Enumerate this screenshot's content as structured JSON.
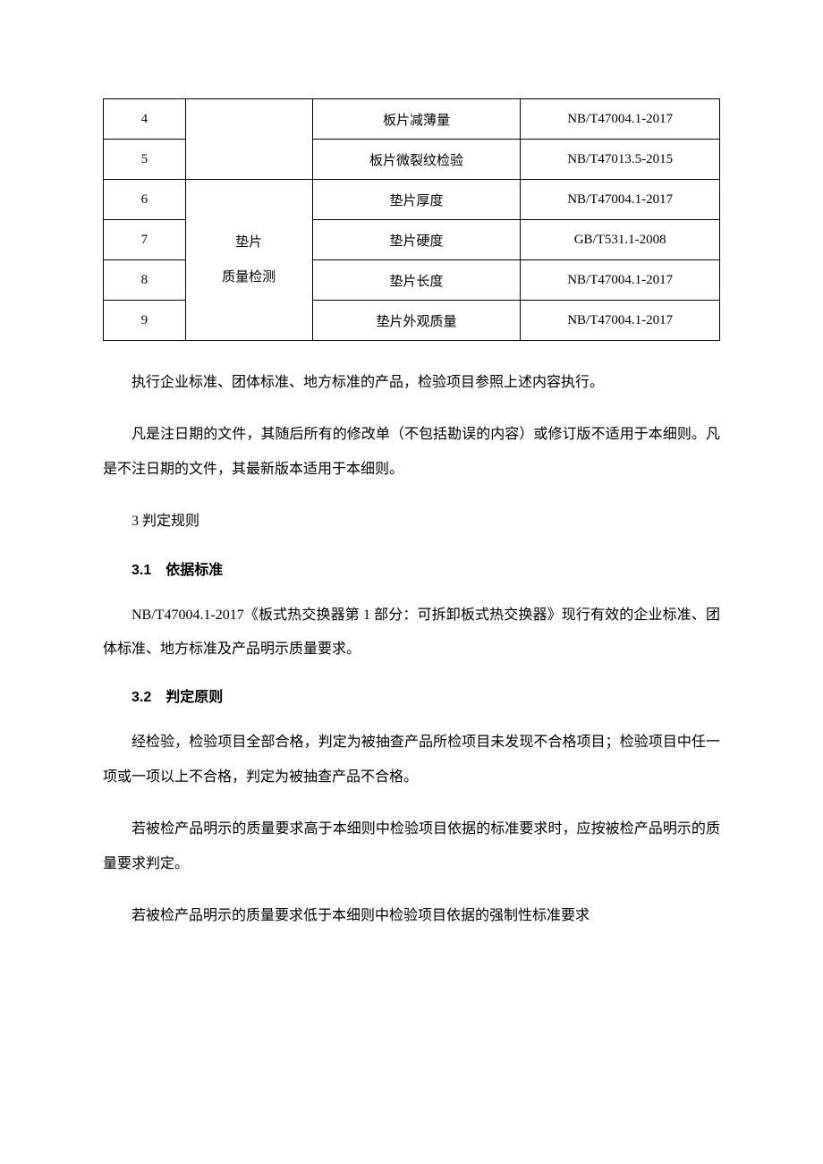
{
  "table": {
    "rows": [
      {
        "num": "4",
        "item": "板片减薄量",
        "std": "NB/T47004.1-2017"
      },
      {
        "num": "5",
        "item": "板片微裂纹检验",
        "std": "NB/T47013.5-2015"
      },
      {
        "num": "6",
        "item": "垫片厚度",
        "std": "NB/T47004.1-2017"
      },
      {
        "num": "7",
        "item": "垫片硬度",
        "std": "GB/T531.1-2008"
      },
      {
        "num": "8",
        "item": "垫片长度",
        "std": "NB/T47004.1-2017"
      },
      {
        "num": "9",
        "item": "垫片外观质量",
        "std": "NB/T47004.1-2017"
      }
    ],
    "category_line1": "垫片",
    "category_line2": "质量检测"
  },
  "paragraphs": {
    "p1": "执行企业标准、团体标准、地方标准的产品，检验项目参照上述内容执行。",
    "p2": "凡是注日期的文件，其随后所有的修改单（不包括勘误的内容）或修订版不适用于本细则。凡是不注日期的文件，其最新版本适用于本细则。",
    "sec3": "3 判定规则",
    "h31": "3.1 依据标准",
    "p3": "NB/T47004.1-2017《板式热交换器第 1 部分：可拆卸板式热交换器》现行有效的企业标准、团体标准、地方标准及产品明示质量要求。",
    "h32": "3.2 判定原则",
    "p4": "经检验，检验项目全部合格，判定为被抽查产品所检项目未发现不合格项目；检验项目中任一项或一项以上不合格，判定为被抽查产品不合格。",
    "p5": "若被检产品明示的质量要求高于本细则中检验项目依据的标准要求时，应按被检产品明示的质量要求判定。",
    "p6": "若被检产品明示的质量要求低于本细则中检验项目依据的强制性标准要求"
  }
}
